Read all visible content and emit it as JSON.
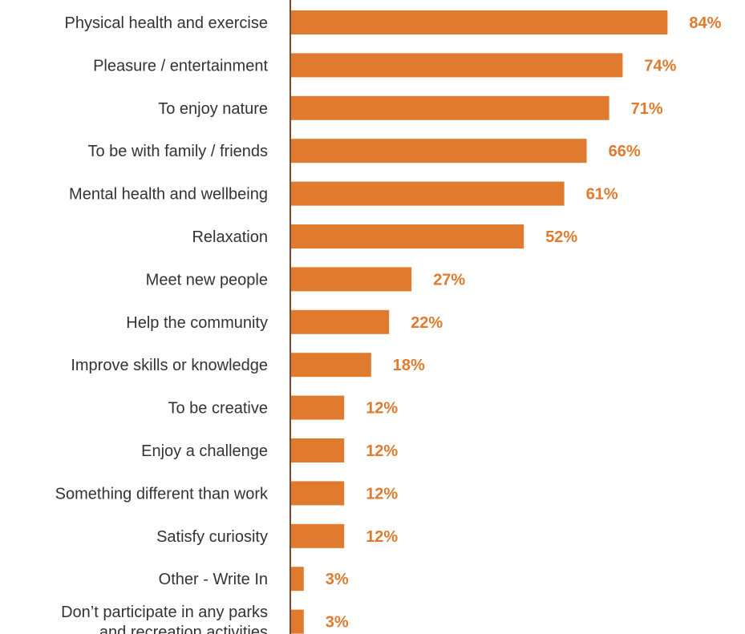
{
  "colors": {
    "bar": "#E07A2E",
    "value_text": "#E07A2E",
    "axis": "#7a4a2a",
    "label_text": "#333333"
  },
  "chart_data": {
    "type": "bar",
    "orientation": "horizontal",
    "categories": [
      [
        "Physical health and exercise"
      ],
      [
        "Pleasure / entertainment"
      ],
      [
        "To enjoy nature"
      ],
      [
        "To be with family / friends"
      ],
      [
        "Mental health and wellbeing"
      ],
      [
        "Relaxation"
      ],
      [
        "Meet new people"
      ],
      [
        "Help the community"
      ],
      [
        "Improve skills or knowledge"
      ],
      [
        "To be creative"
      ],
      [
        "Enjoy a challenge"
      ],
      [
        "Something different than work"
      ],
      [
        "Satisfy curiosity"
      ],
      [
        "Other - Write In"
      ],
      [
        "Don’t participate in any parks",
        "and recreation activities"
      ]
    ],
    "values": [
      84,
      74,
      71,
      66,
      61,
      52,
      27,
      22,
      18,
      12,
      12,
      12,
      12,
      3,
      3
    ],
    "value_labels": [
      "84%",
      "74%",
      "71%",
      "66%",
      "61%",
      "52%",
      "27%",
      "22%",
      "18%",
      "12%",
      "12%",
      "12%",
      "12%",
      "3%",
      "3%"
    ],
    "xlim": [
      0,
      100
    ],
    "grid": false,
    "legend": "none"
  }
}
